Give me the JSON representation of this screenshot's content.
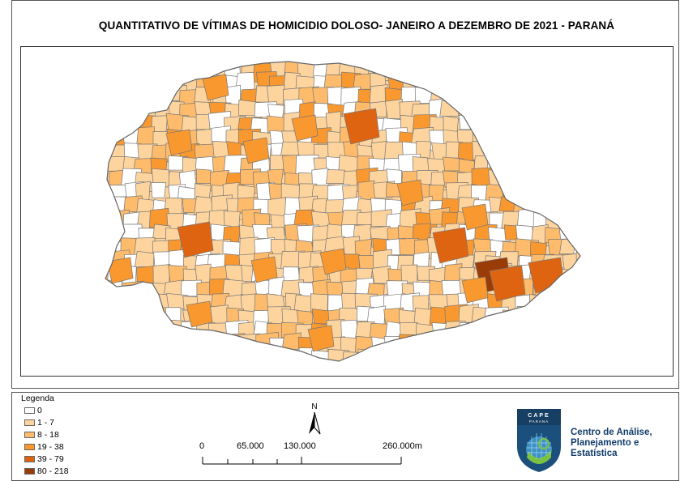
{
  "title": "QUANTITATIVO DE VÍTIMAS DE HOMICIDIO DOLOSO- JANEIRO A DEZEMBRO DE 2021 - PARANÁ",
  "legend": {
    "title": "Legenda",
    "classes": [
      {
        "label": "0",
        "color": "#ffffff"
      },
      {
        "label": "1 - 7",
        "color": "#fdd49e"
      },
      {
        "label": "8 - 18",
        "color": "#fdbb6b"
      },
      {
        "label": "19 - 38",
        "color": "#f8982f"
      },
      {
        "label": "39 - 79",
        "color": "#df6412"
      },
      {
        "label": "80 - 218",
        "color": "#9a3c07"
      }
    ]
  },
  "scale_bar": {
    "labels": [
      "0",
      "65.000",
      "130.000",
      "260.000m"
    ]
  },
  "north_arrow": {
    "label": "N"
  },
  "logo": {
    "acronym": "CAPE",
    "subtext": "PARANÁ",
    "name_lines": [
      "Centro de Análise,",
      "Planejamento e",
      "Estatística"
    ]
  }
}
